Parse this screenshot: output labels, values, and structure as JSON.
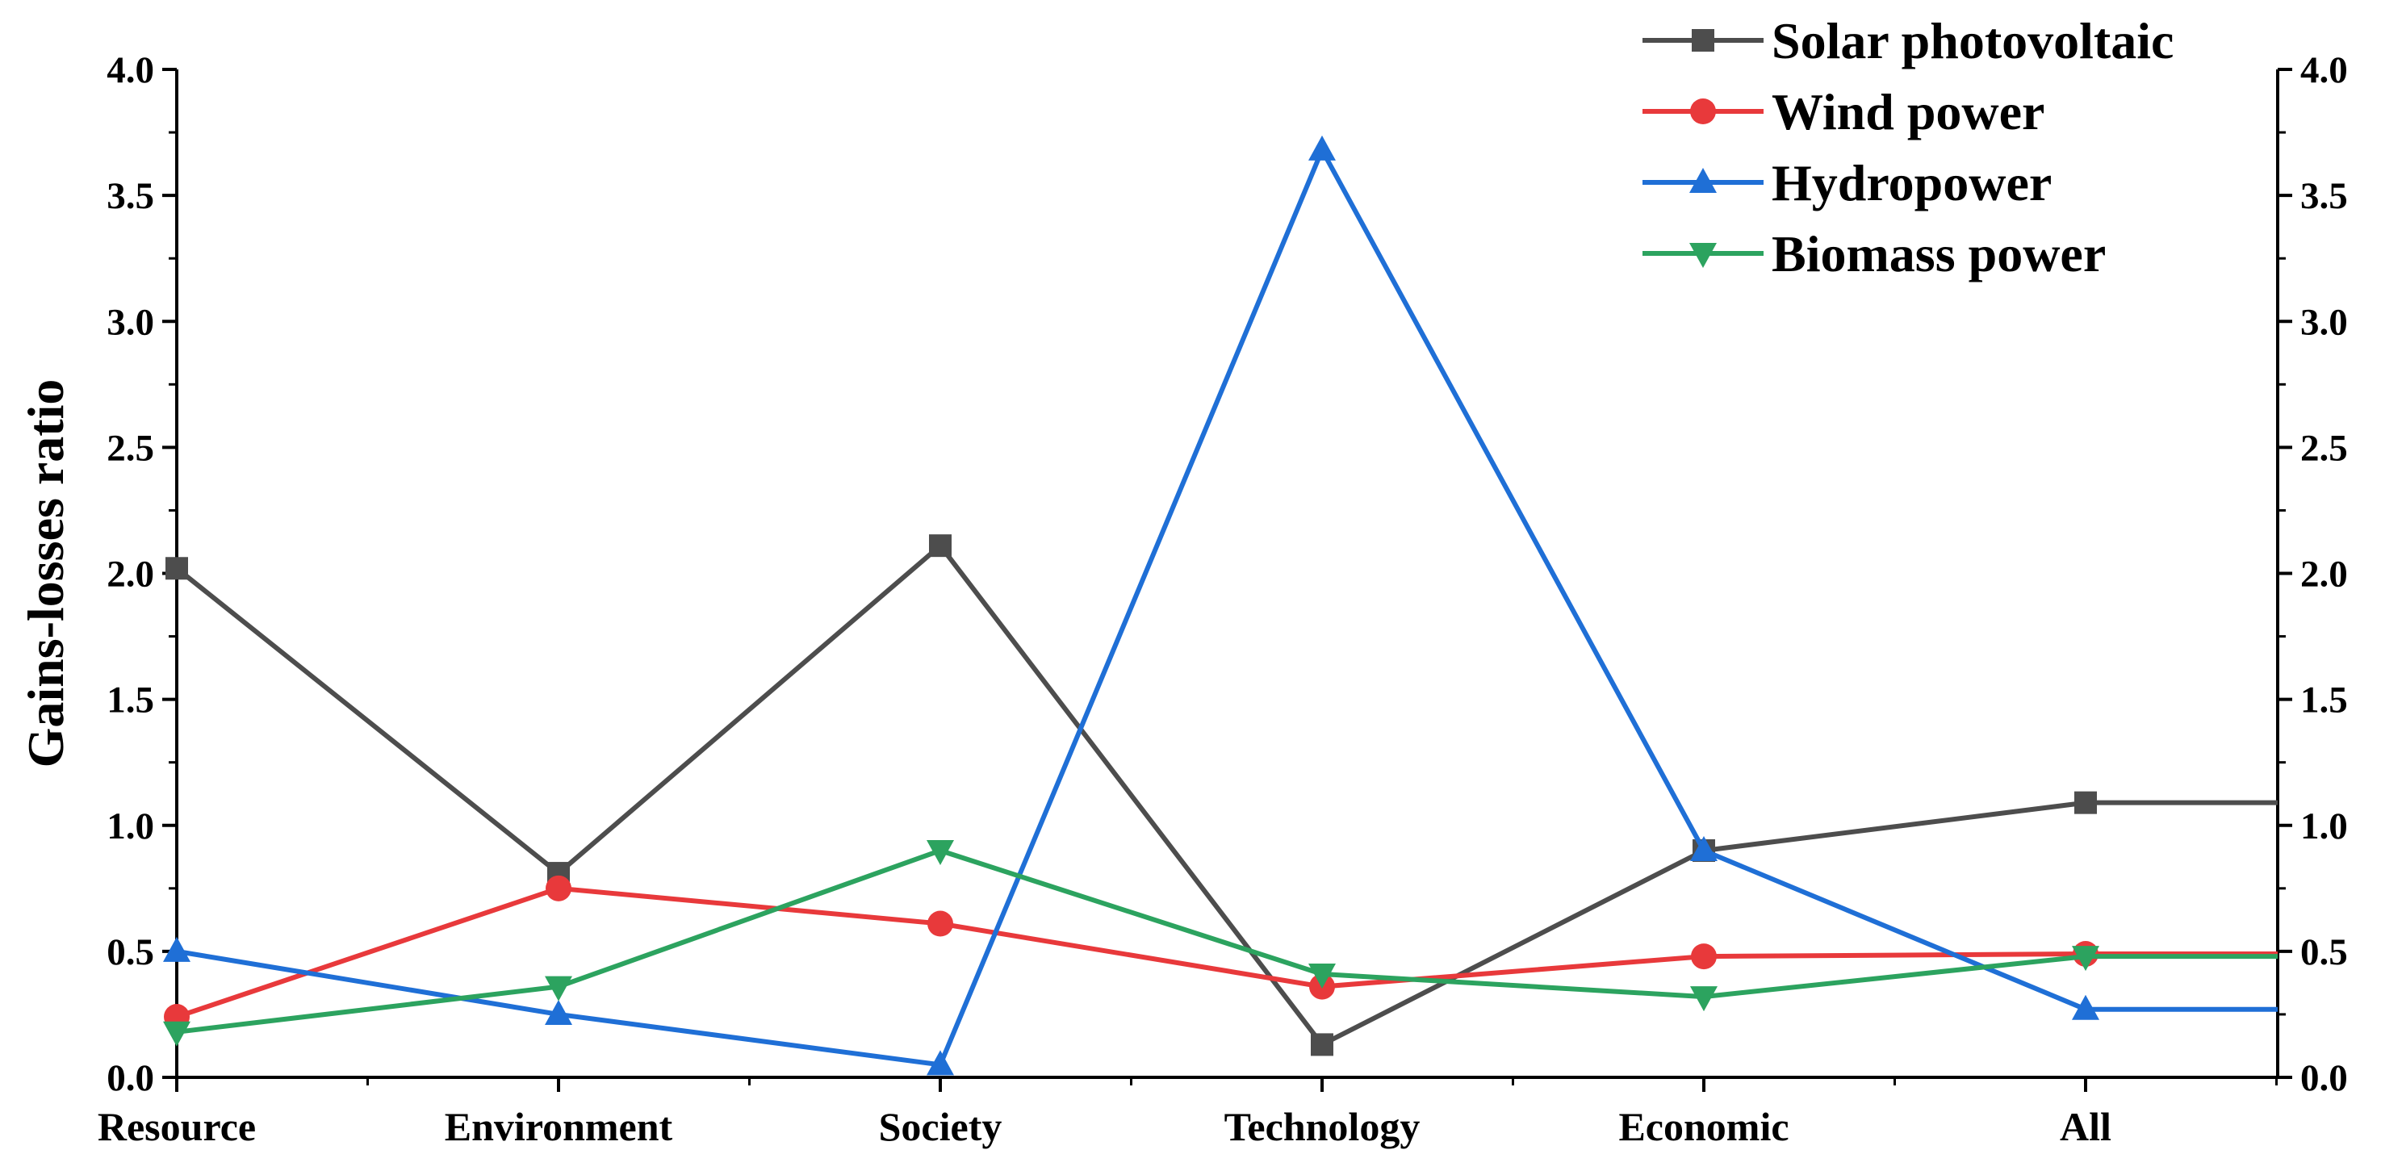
{
  "chart_data": {
    "type": "line",
    "title": "",
    "xlabel": "",
    "ylabel": "Gains-losses ratio",
    "ylim": [
      0,
      4.0
    ],
    "y_ticks": [
      "0.0",
      "0.5",
      "1.0",
      "1.5",
      "2.0",
      "2.5",
      "3.0",
      "3.5",
      "4.0"
    ],
    "y_tick_values": [
      0,
      0.5,
      1.0,
      1.5,
      2.0,
      2.5,
      3.0,
      3.5,
      4.0
    ],
    "right_axis_mirrored": true,
    "grid": false,
    "legend_position": "top-right",
    "categories": [
      "Resource",
      "Environment",
      "Society",
      "Technology",
      "Economic",
      "All"
    ],
    "series": [
      {
        "name": "Solar photovoltaic",
        "color": "#4d4d4d",
        "marker": "square",
        "values": [
          2.02,
          0.81,
          2.11,
          0.13,
          0.9,
          1.09
        ]
      },
      {
        "name": "Wind power",
        "color": "#e8393b",
        "marker": "circle",
        "values": [
          0.24,
          0.75,
          0.61,
          0.36,
          0.48,
          0.49
        ]
      },
      {
        "name": "Hydropower",
        "color": "#1f6fd6",
        "marker": "triangle-up",
        "values": [
          0.5,
          0.25,
          0.05,
          3.68,
          0.9,
          0.27
        ]
      },
      {
        "name": "Biomass power",
        "color": "#2ca35f",
        "marker": "triangle-down",
        "values": [
          0.18,
          0.36,
          0.9,
          0.41,
          0.32,
          0.48
        ]
      }
    ]
  }
}
